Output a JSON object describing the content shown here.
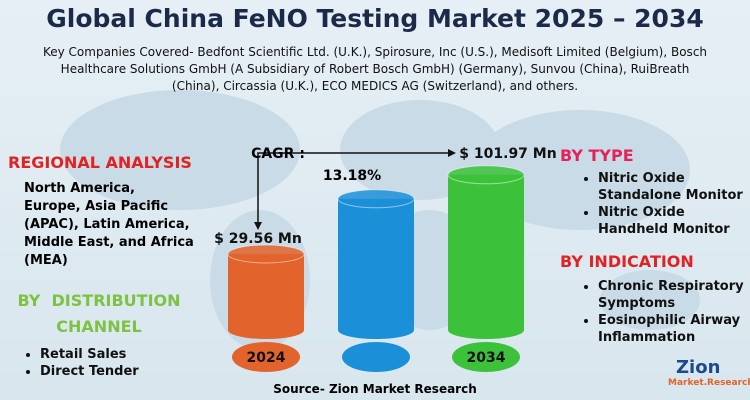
{
  "title": "Global China FeNO Testing Market 2025 – 2034",
  "key_companies": "Key Companies Covered- Bedfont Scientific Ltd. (U.K.), Spirosure, Inc (U.S.), Medisoft Limited (Belgium), Bosch Healthcare Solutions GmbH (A Subsidiary of Robert Bosch GmbH) (Germany), Sunvou (China), RuiBreath (China), Circassia (U.K.), ECO MEDICS AG (Switzerland), and others.",
  "regional_analysis": {
    "heading": "REGIONAL ANALYSIS",
    "text": "North America, Europe, Asia Pacific (APAC), Latin America, Middle East, and Africa (MEA)"
  },
  "distribution_channel": {
    "heading": "BY  DISTRIBUTION CHANNEL",
    "items": [
      "Retail Sales",
      "Direct Tender"
    ]
  },
  "by_type": {
    "heading": "BY TYPE",
    "items": [
      "Nitric Oxide Standalone Monitor",
      "Nitric Oxide Handheld Monitor"
    ]
  },
  "by_indication": {
    "heading": "BY INDICATION",
    "items": [
      "Chronic Respiratory Symptoms",
      "Eosinophilic Airway Inflammation"
    ]
  },
  "cagr": {
    "label": "CAGR :",
    "value": "13.18%"
  },
  "chart_data": {
    "type": "bar",
    "categories": [
      "2024",
      null,
      "2034"
    ],
    "values": [
      29.56,
      80,
      101.97
    ],
    "value_labels": [
      "$ 29.56 Mn",
      null,
      "$ 101.97 Mn"
    ],
    "colors": [
      "#e2632b",
      "#1b8fd8",
      "#3cc23a"
    ],
    "ylim": [
      -40,
      110
    ]
  },
  "source": "Source- Zion Market Research",
  "logo": {
    "name": "Zion",
    "sub": "Market.Research"
  }
}
